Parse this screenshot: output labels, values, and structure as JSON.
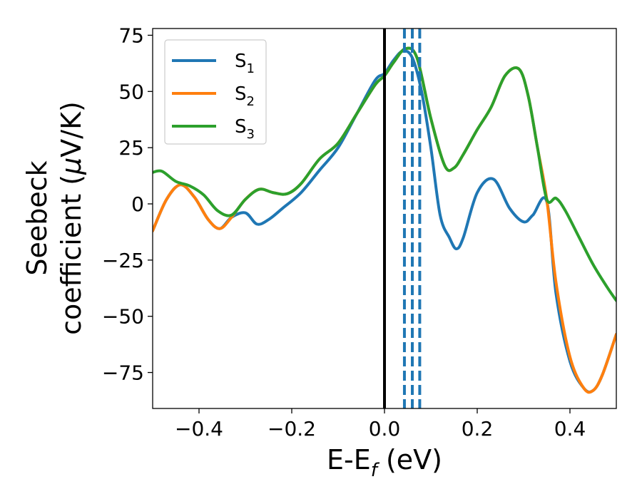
{
  "chart_data": {
    "type": "line",
    "xlabel_main": "E-E",
    "xlabel_sub": "f",
    "xlabel_unit": " (eV)",
    "ylabel_line1": "Seebeck",
    "ylabel_line2_a": "coefficient  (",
    "ylabel_line2_mu": "μ",
    "ylabel_line2_b": "V/K)",
    "xlim": [
      -0.5,
      0.5
    ],
    "ylim": [
      -91,
      78
    ],
    "xticks": [
      -0.4,
      -0.2,
      0.0,
      0.2,
      0.4
    ],
    "xtick_labels": [
      "−0.4",
      "−0.2",
      "0.0",
      "0.2",
      "0.4"
    ],
    "yticks": [
      75,
      50,
      25,
      0,
      -25,
      -50,
      -75
    ],
    "ytick_labels": [
      "75",
      "50",
      "25",
      "0",
      "−25",
      "−50",
      "−75"
    ],
    "legend_position": "top-left",
    "series": [
      {
        "name": "S",
        "sub": "1",
        "color": "#1f77b4",
        "x": [
          -0.5,
          -0.47,
          -0.44,
          -0.41,
          -0.38,
          -0.355,
          -0.33,
          -0.3,
          -0.275,
          -0.25,
          -0.22,
          -0.18,
          -0.14,
          -0.1,
          -0.06,
          -0.02,
          0.0,
          0.02,
          0.04,
          0.06,
          0.08,
          0.1,
          0.12,
          0.14,
          0.155,
          0.17,
          0.2,
          0.235,
          0.27,
          0.3,
          0.32,
          0.35,
          0.37,
          0.4,
          0.43,
          0.45,
          0.47,
          0.5
        ],
        "y": [
          -12,
          2,
          8.5,
          3,
          -7,
          -11,
          -6,
          -4,
          -9,
          -7,
          -2,
          5,
          15,
          25,
          40,
          55,
          58,
          64,
          68,
          65,
          50,
          25,
          -5,
          -15,
          -20,
          -15,
          5,
          11,
          -2,
          -8,
          -5,
          1,
          -40,
          -70,
          -82,
          -83,
          -76,
          -58
        ]
      },
      {
        "name": "S",
        "sub": "2",
        "color": "#ff7f0e",
        "x": [
          -0.5,
          -0.47,
          -0.44,
          -0.41,
          -0.38,
          -0.355,
          -0.33,
          -0.3,
          -0.27,
          -0.24,
          -0.21,
          -0.18,
          -0.14,
          -0.1,
          -0.06,
          -0.02,
          0.0,
          0.02,
          0.045,
          0.07,
          0.1,
          0.13,
          0.15,
          0.17,
          0.2,
          0.23,
          0.26,
          0.29,
          0.31,
          0.33,
          0.35,
          0.37,
          0.4,
          0.43,
          0.45,
          0.47,
          0.5
        ],
        "y": [
          -12,
          2,
          8.5,
          3,
          -7,
          -11,
          -6,
          2,
          6.5,
          5,
          4.5,
          9,
          20,
          27,
          40,
          53,
          57,
          63,
          69,
          65,
          38,
          17,
          16,
          22,
          33,
          43,
          57,
          60,
          48,
          25,
          2,
          -35,
          -68,
          -82,
          -83,
          -76,
          -58
        ]
      },
      {
        "name": "S",
        "sub": "3",
        "color": "#2ca02c",
        "x": [
          -0.5,
          -0.48,
          -0.45,
          -0.42,
          -0.39,
          -0.36,
          -0.33,
          -0.3,
          -0.27,
          -0.24,
          -0.21,
          -0.18,
          -0.14,
          -0.1,
          -0.06,
          -0.02,
          0.0,
          0.02,
          0.045,
          0.07,
          0.1,
          0.13,
          0.15,
          0.17,
          0.2,
          0.23,
          0.26,
          0.29,
          0.31,
          0.33,
          0.35,
          0.37,
          0.39,
          0.42,
          0.45,
          0.48,
          0.5
        ],
        "y": [
          14,
          14.5,
          10,
          8,
          4,
          -3,
          -5,
          2,
          6.5,
          5,
          4.5,
          9,
          20,
          27,
          40,
          53,
          57,
          63,
          69,
          65,
          38,
          17,
          16,
          22,
          33,
          43,
          57,
          60,
          48,
          25,
          2,
          2.5,
          -3,
          -15,
          -27,
          -37,
          -43
        ]
      }
    ],
    "vlines": [
      {
        "x": 0.0,
        "color": "#000000",
        "style": "solid"
      },
      {
        "x": 0.043,
        "color": "#1f77b4",
        "style": "dashed"
      },
      {
        "x": 0.06,
        "color": "#1f77b4",
        "style": "dashed"
      },
      {
        "x": 0.076,
        "color": "#1f77b4",
        "style": "dashed"
      }
    ]
  }
}
